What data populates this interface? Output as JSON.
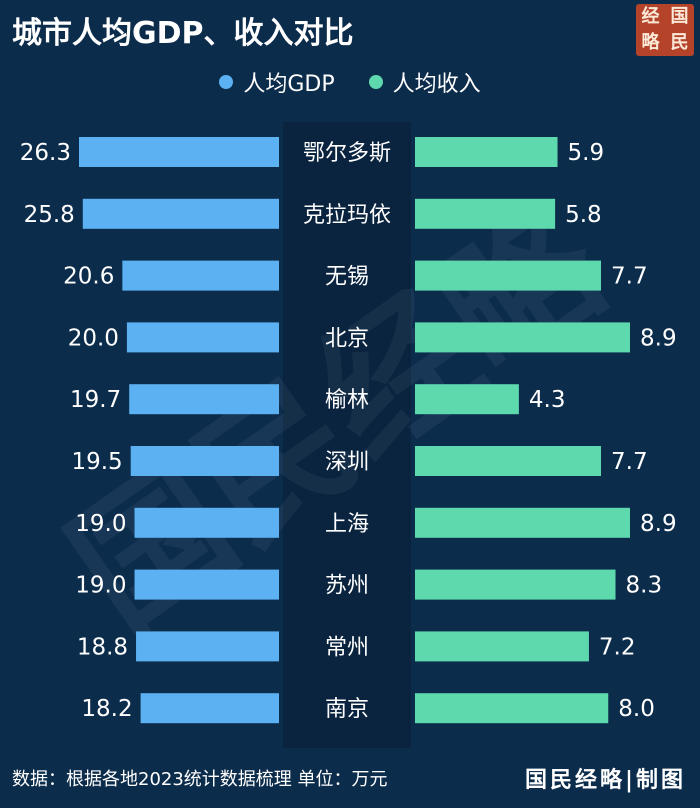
{
  "title": "城市人均GDP、收入对比",
  "logo": {
    "chars": [
      "经",
      "国",
      "略",
      "民"
    ]
  },
  "watermark": "国民经略",
  "footer": {
    "source": "数据：根据各地2023统计数据梳理 单位：万元",
    "brand": "国民经略|制图"
  },
  "colors": {
    "background": "#0c2c4c",
    "gdp": "#5cb1f2",
    "income": "#5ed9ae"
  },
  "chart_data": {
    "type": "bar",
    "title": "城市人均GDP、收入对比",
    "legend_position": "top-center",
    "categories": [
      "鄂尔多斯",
      "克拉玛依",
      "无锡",
      "北京",
      "榆林",
      "深圳",
      "上海",
      "苏州",
      "常州",
      "南京"
    ],
    "series": [
      {
        "name": "人均GDP",
        "values": [
          26.3,
          25.8,
          20.6,
          20.0,
          19.7,
          19.5,
          19.0,
          19.0,
          18.8,
          18.2
        ],
        "labels": [
          "26.3",
          "25.8",
          "20.6",
          "20.0",
          "19.7",
          "19.5",
          "19.0",
          "19.0",
          "18.8",
          "18.2"
        ]
      },
      {
        "name": "人均收入",
        "values": [
          5.9,
          5.8,
          7.7,
          8.9,
          4.3,
          7.7,
          8.9,
          8.3,
          7.2,
          8.0
        ],
        "labels": [
          "5.9",
          "5.8",
          "7.7",
          "8.9",
          "4.3",
          "7.7",
          "8.9",
          "8.3",
          "7.2",
          "8.0"
        ]
      }
    ],
    "unit": "万元"
  }
}
